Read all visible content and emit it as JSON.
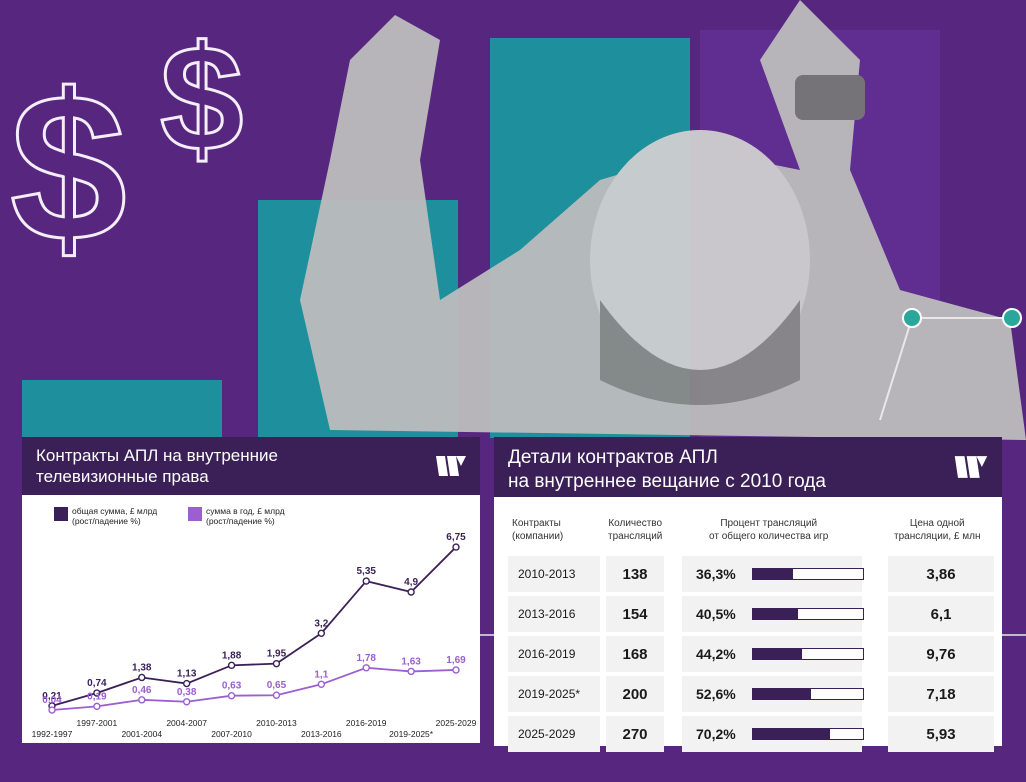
{
  "colors": {
    "background": "#5b2a86",
    "header": "#3b1f57",
    "series_total": "#3b1f57",
    "series_annual": "#9b5fd0",
    "accent_teal": "#1e8f9c"
  },
  "left_panel": {
    "title": "Контракты АПЛ на внутренние\nтелевизионные права",
    "logo_icon": "brand-logo-icon"
  },
  "chart_data": {
    "type": "line",
    "title": "Контракты АПЛ на внутренние телевизионные права",
    "categories": [
      "1992-1997",
      "1997-2001",
      "2001-2004",
      "2004-2007",
      "2007-2010",
      "2010-2013",
      "2013-2016",
      "2016-2019",
      "2019-2025*",
      "2025-2029"
    ],
    "series": [
      {
        "name": "общая сумма, £ млрд (рост/падение %)",
        "color": "#3b1f57",
        "values": [
          0.21,
          0.74,
          1.38,
          1.13,
          1.88,
          1.95,
          3.2,
          5.35,
          4.9,
          6.75
        ],
        "labels": [
          "0,21",
          "0,74",
          "1,38",
          "1,13",
          "1,88",
          "1,95",
          "3,2",
          "5,35",
          "4,9",
          "6,75"
        ]
      },
      {
        "name": "сумма в год, £ млрд (рост/падение %)",
        "color": "#9b5fd0",
        "values": [
          0.04,
          0.19,
          0.46,
          0.38,
          0.63,
          0.65,
          1.1,
          1.78,
          1.63,
          1.69
        ],
        "labels": [
          "0,04",
          "0,19",
          "0,46",
          "0,38",
          "0,63",
          "0,65",
          "1,1",
          "1,78",
          "1,63",
          "1,69"
        ]
      }
    ],
    "ylim": [
      0,
      7
    ],
    "legend": "top-left",
    "grid": false
  },
  "right_panel": {
    "title": "Детали контрактов АПЛ\nна внутреннее вещание с 2010 года",
    "logo_icon": "brand-logo-icon",
    "headers": {
      "period": "Контракты\n(компании)",
      "count": "Количество\nтрансляций",
      "pct": "Процент трансляций\nот общего количества игр",
      "price": "Цена одной\nтрансляции, £ млн"
    },
    "rows": [
      {
        "period": "2010-2013",
        "count": "138",
        "pct": "36,3%",
        "pct_value": 36.3,
        "price": "3,86"
      },
      {
        "period": "2013-2016",
        "count": "154",
        "pct": "40,5%",
        "pct_value": 40.5,
        "price": "6,1"
      },
      {
        "period": "2016-2019",
        "count": "168",
        "pct": "44,2%",
        "pct_value": 44.2,
        "price": "9,76"
      },
      {
        "period": "2019-2025*",
        "count": "200",
        "pct": "52,6%",
        "pct_value": 52.6,
        "price": "7,18"
      },
      {
        "period": "2025-2029",
        "count": "270",
        "pct": "70,2%",
        "pct_value": 70.2,
        "price": "5,93"
      }
    ]
  }
}
